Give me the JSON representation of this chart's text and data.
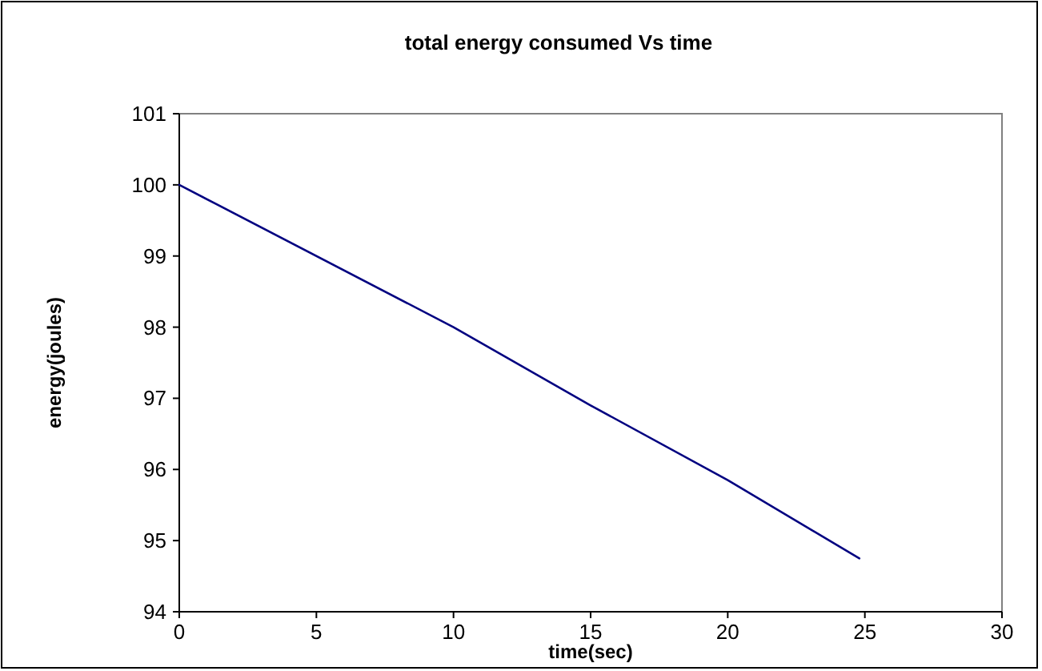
{
  "chart_data": {
    "type": "line",
    "title": "total energy consumed Vs time",
    "xlabel": "time(sec)",
    "ylabel": "energy(joules)",
    "series": [
      {
        "color": "#000080",
        "x": [
          0,
          10,
          15,
          20,
          24.8
        ],
        "values": [
          100,
          98,
          96.9,
          95.85,
          94.75
        ]
      }
    ],
    "xlim": [
      0,
      30
    ],
    "xticks": [
      0,
      5,
      10,
      15,
      20,
      25,
      30
    ],
    "ylim": [
      94,
      101
    ],
    "yticks": [
      94,
      95,
      96,
      97,
      98,
      99,
      100,
      101
    ],
    "marker": "none",
    "line_style": "solid"
  }
}
